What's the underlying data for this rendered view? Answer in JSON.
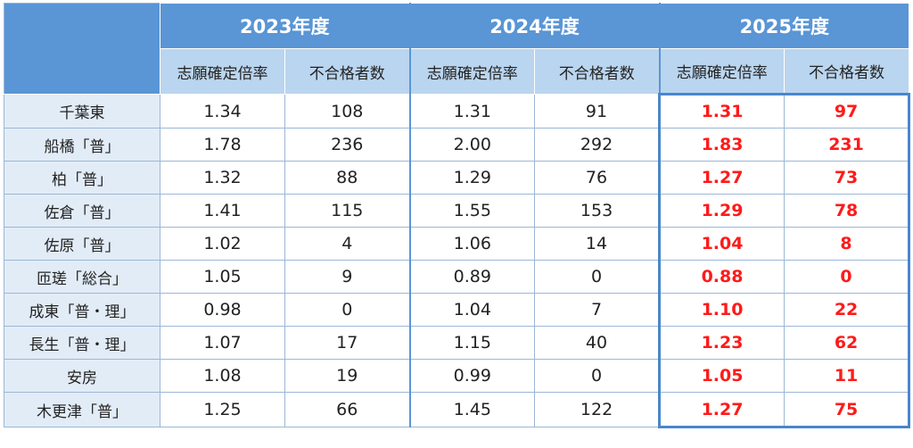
{
  "years": [
    "2023年度",
    "2024年度",
    "2025年度"
  ],
  "subheaders": [
    "志願確定倍率",
    "不合格者数"
  ],
  "rows": [
    {
      "school": "千葉東",
      "v": [
        "1.34",
        "108",
        "1.31",
        "91",
        "1.31",
        "97"
      ]
    },
    {
      "school": "船橋「普」",
      "v": [
        "1.78",
        "236",
        "2.00",
        "292",
        "1.83",
        "231"
      ]
    },
    {
      "school": "柏「普」",
      "v": [
        "1.32",
        "88",
        "1.29",
        "76",
        "1.27",
        "73"
      ]
    },
    {
      "school": "佐倉「普」",
      "v": [
        "1.41",
        "115",
        "1.55",
        "153",
        "1.29",
        "78"
      ]
    },
    {
      "school": "佐原「普」",
      "v": [
        "1.02",
        "4",
        "1.06",
        "14",
        "1.04",
        "8"
      ]
    },
    {
      "school": "匝瑳「総合」",
      "v": [
        "1.05",
        "9",
        "0.89",
        "0",
        "0.88",
        "0"
      ]
    },
    {
      "school": "成東「普・理」",
      "v": [
        "0.98",
        "0",
        "1.04",
        "7",
        "1.10",
        "22"
      ]
    },
    {
      "school": "長生「普・理」",
      "v": [
        "1.07",
        "17",
        "1.15",
        "40",
        "1.23",
        "62"
      ]
    },
    {
      "school": "安房",
      "v": [
        "1.08",
        "19",
        "0.99",
        "0",
        "1.05",
        "11"
      ]
    },
    {
      "school": "木更津「普」",
      "v": [
        "1.25",
        "66",
        "1.45",
        "122",
        "1.27",
        "75"
      ]
    }
  ],
  "colors": {
    "header": "#5a95d5",
    "subheader": "#bad5ef",
    "school_cell": "#e2ecf7",
    "highlight_text": "#ff1a1a"
  }
}
